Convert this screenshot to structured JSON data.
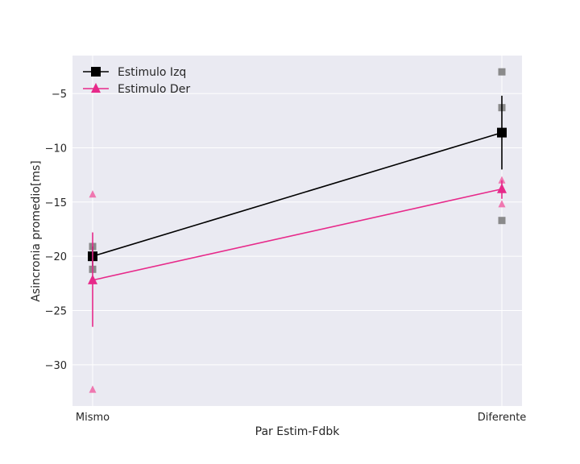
{
  "chart_data": {
    "type": "line",
    "title": "",
    "xlabel": "Par Estim-Fdbk",
    "ylabel": "Asincronia promedio[ms]",
    "categories": [
      "Mismo",
      "Diferente"
    ],
    "ylim": [
      -33.8,
      -1.5
    ],
    "yticks": [
      -5,
      -10,
      -15,
      -20,
      -25,
      -30
    ],
    "grid": true,
    "legend_position": "top-left",
    "series": [
      {
        "name": "Estimulo Izq",
        "color": "#000000",
        "marker": "square",
        "mean": [
          -20.0,
          -8.6
        ],
        "err_low": [
          -20.9,
          -12.0
        ],
        "err_high": [
          -19.1,
          -5.2
        ],
        "individual": [
          [
            -19.1,
            -21.2
          ],
          [
            -3.0,
            -6.3,
            -16.7
          ]
        ],
        "individual_color": "#808080"
      },
      {
        "name": "Estimulo Der",
        "color": "#e7298a",
        "marker": "triangle",
        "mean": [
          -22.2,
          -13.8
        ],
        "err_low": [
          -26.5,
          -14.7
        ],
        "err_high": [
          -17.8,
          -13.0
        ],
        "individual": [
          [
            -14.3,
            -32.3
          ],
          [
            -13.0,
            -15.2
          ]
        ],
        "individual_color": "#f06aa8"
      }
    ]
  }
}
